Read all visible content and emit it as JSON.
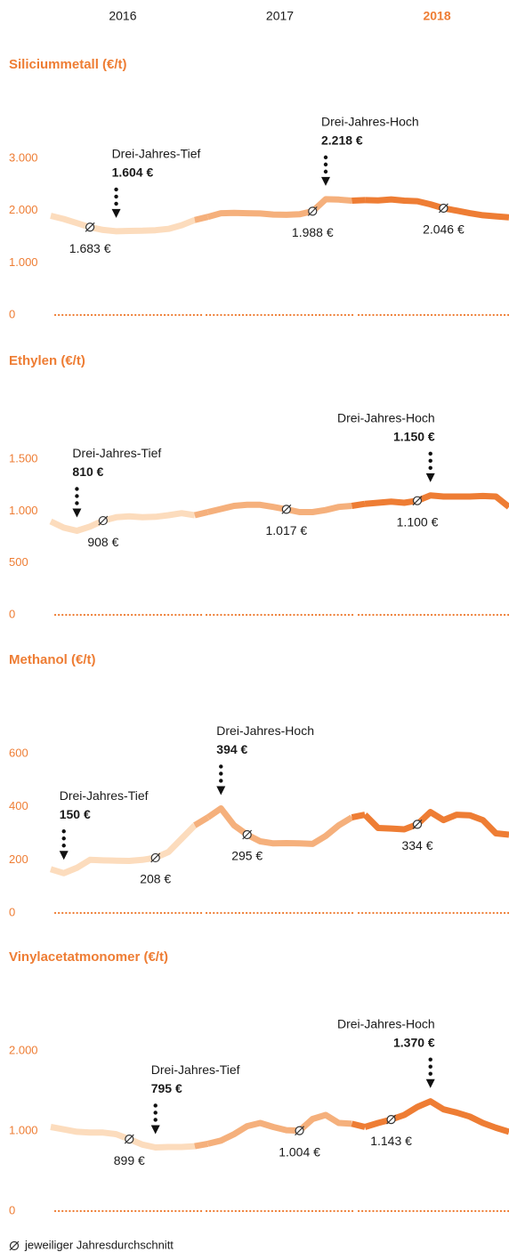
{
  "chart_data": [
    {
      "type": "line",
      "title": "Siliciummetall (€/t)",
      "ylim": [
        0,
        3000
      ],
      "yticks": [
        0,
        {
          "value": 1000,
          "label": "1.000"
        },
        {
          "value": 2000,
          "label": "2.000"
        },
        {
          "value": 3000,
          "label": "3.000"
        }
      ],
      "series": [
        {
          "name": "2016",
          "color": "#fcdcbd",
          "values": [
            1900,
            1840,
            1760,
            1683,
            1630,
            1604,
            1610,
            1615,
            1625,
            1650,
            1720,
            1820
          ],
          "average": 1683,
          "average_label": "1.683 €"
        },
        {
          "name": "2017",
          "color": "#f5b07c",
          "values": [
            1880,
            1950,
            1955,
            1950,
            1945,
            1925,
            1920,
            1930,
            1988,
            2218,
            2210,
            2190
          ],
          "average": 1988,
          "average_label": "1.988 €"
        },
        {
          "name": "2018",
          "color": "#ee7d34",
          "values": [
            2200,
            2195,
            2215,
            2190,
            2180,
            2120,
            2046,
            2000,
            1950,
            1910,
            1890,
            1870
          ],
          "average": 2046,
          "average_label": "2.046 €"
        }
      ],
      "annotations": [
        {
          "text": "Drei-Jahres-Tief",
          "value": 1604,
          "value_label": "1.604 €"
        },
        {
          "text": "Drei-Jahres-Hoch",
          "value": 2218,
          "value_label": "2.218 €"
        }
      ]
    },
    {
      "type": "line",
      "title": "Ethylen (€/t)",
      "ylim": [
        0,
        1500
      ],
      "yticks": [
        0,
        500,
        {
          "value": 1000,
          "label": "1.000"
        },
        {
          "value": 1500,
          "label": "1.500"
        }
      ],
      "series": [
        {
          "name": "2016",
          "color": "#fcdcbd",
          "values": [
            900,
            840,
            810,
            850,
            908,
            940,
            950,
            940,
            945,
            960,
            980,
            960
          ],
          "average": 908,
          "average_label": "908 €"
        },
        {
          "name": "2017",
          "color": "#f5b07c",
          "values": [
            990,
            1020,
            1050,
            1060,
            1060,
            1040,
            1017,
            990,
            990,
            1010,
            1040,
            1050
          ],
          "average": 1017,
          "average_label": "1.017 €"
        },
        {
          "name": "2018",
          "color": "#ee7d34",
          "values": [
            1070,
            1080,
            1090,
            1080,
            1100,
            1150,
            1140,
            1140,
            1140,
            1145,
            1140,
            1040
          ],
          "average": 1100,
          "average_label": "1.100 €"
        }
      ],
      "annotations": [
        {
          "text": "Drei-Jahres-Tief",
          "value": 810,
          "value_label": "810 €"
        },
        {
          "text": "Drei-Jahres-Hoch",
          "value": 1150,
          "value_label": "1.150 €"
        }
      ]
    },
    {
      "type": "line",
      "title": "Methanol (€/t)",
      "ylim": [
        0,
        600
      ],
      "yticks": [
        0,
        200,
        400,
        600
      ],
      "series": [
        {
          "name": "2016",
          "color": "#fcdcbd",
          "values": [
            165,
            150,
            170,
            200,
            198,
            197,
            196,
            200,
            208,
            230,
            280,
            330
          ],
          "average": 208,
          "average_label": "208 €"
        },
        {
          "name": "2017",
          "color": "#f5b07c",
          "values": [
            360,
            394,
            330,
            295,
            270,
            262,
            263,
            262,
            260,
            290,
            330,
            360
          ],
          "average": 295,
          "average_label": "295 €"
        },
        {
          "name": "2018",
          "color": "#ee7d34",
          "values": [
            370,
            320,
            318,
            315,
            334,
            380,
            350,
            370,
            368,
            350,
            300,
            295
          ],
          "average": 334,
          "average_label": "334 €"
        }
      ],
      "annotations": [
        {
          "text": "Drei-Jahres-Tief",
          "value": 150,
          "value_label": "150 €"
        },
        {
          "text": "Drei-Jahres-Hoch",
          "value": 394,
          "value_label": "394 €"
        }
      ]
    },
    {
      "type": "line",
      "title": "Vinylacetatmonomer (€/t)",
      "ylim": [
        0,
        2000
      ],
      "yticks": [
        0,
        {
          "value": 1000,
          "label": "1.000"
        },
        {
          "value": 2000,
          "label": "2.000"
        }
      ],
      "series": [
        {
          "name": "2016",
          "color": "#fcdcbd",
          "values": [
            1050,
            1020,
            990,
            980,
            980,
            960,
            899,
            830,
            795,
            800,
            800,
            810
          ],
          "average": 899,
          "average_label": "899 €"
        },
        {
          "name": "2017",
          "color": "#f5b07c",
          "values": [
            840,
            880,
            960,
            1060,
            1100,
            1050,
            1010,
            1004,
            1150,
            1200,
            1100,
            1090
          ],
          "average": 1004,
          "average_label": "1.004 €"
        },
        {
          "name": "2018",
          "color": "#ee7d34",
          "values": [
            1050,
            1100,
            1143,
            1200,
            1300,
            1370,
            1270,
            1230,
            1180,
            1100,
            1040,
            990
          ],
          "average": 1143,
          "average_label": "1.143 €"
        }
      ],
      "annotations": [
        {
          "text": "Drei-Jahres-Tief",
          "value": 795,
          "value_label": "795 €"
        },
        {
          "text": "Drei-Jahres-Hoch",
          "value": 1370,
          "value_label": "1.370 €"
        }
      ]
    }
  ],
  "footnote": "jeweiliger Jahresdurchschnitt"
}
